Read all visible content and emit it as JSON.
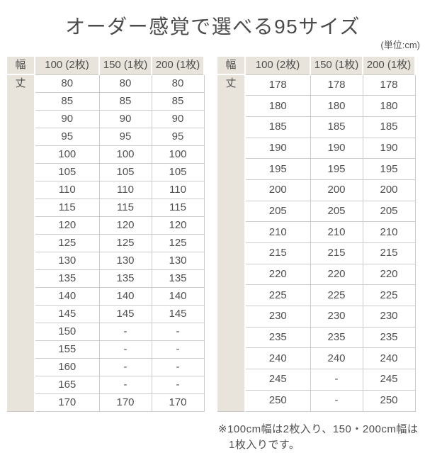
{
  "title": "オーダー感覚で選べる95サイズ",
  "unit_note": "(単位:cm)",
  "footnote": {
    "line1": "※100cm幅は2枚入り、150・200cm幅は",
    "line2": "1枚入りです。"
  },
  "colors": {
    "header_beige": "#e8e4db",
    "grid_line": "#cccccc",
    "text": "#4f4f4f",
    "background": "#ffffff"
  },
  "chart_data": [
    {
      "type": "table",
      "columns": [
        "幅",
        "100 (2枚)",
        "150 (1枚)",
        "200 (1枚)"
      ],
      "row_header": "丈",
      "rows": [
        [
          "80",
          "80",
          "80"
        ],
        [
          "85",
          "85",
          "85"
        ],
        [
          "90",
          "90",
          "90"
        ],
        [
          "95",
          "95",
          "95"
        ],
        [
          "100",
          "100",
          "100"
        ],
        [
          "105",
          "105",
          "105"
        ],
        [
          "110",
          "110",
          "110"
        ],
        [
          "115",
          "115",
          "115"
        ],
        [
          "120",
          "120",
          "120"
        ],
        [
          "125",
          "125",
          "125"
        ],
        [
          "130",
          "130",
          "130"
        ],
        [
          "135",
          "135",
          "135"
        ],
        [
          "140",
          "140",
          "140"
        ],
        [
          "145",
          "145",
          "145"
        ],
        [
          "150",
          "-",
          "-"
        ],
        [
          "155",
          "-",
          "-"
        ],
        [
          "160",
          "-",
          "-"
        ],
        [
          "165",
          "-",
          "-"
        ],
        [
          "170",
          "170",
          "170"
        ]
      ]
    },
    {
      "type": "table",
      "columns": [
        "幅",
        "100 (2枚)",
        "150 (1枚)",
        "200 (1枚)"
      ],
      "row_header": "丈",
      "rows": [
        [
          "178",
          "178",
          "178"
        ],
        [
          "180",
          "180",
          "180"
        ],
        [
          "185",
          "185",
          "185"
        ],
        [
          "190",
          "190",
          "190"
        ],
        [
          "195",
          "195",
          "195"
        ],
        [
          "200",
          "200",
          "200"
        ],
        [
          "205",
          "205",
          "205"
        ],
        [
          "210",
          "210",
          "210"
        ],
        [
          "215",
          "215",
          "215"
        ],
        [
          "220",
          "220",
          "220"
        ],
        [
          "225",
          "225",
          "225"
        ],
        [
          "230",
          "230",
          "230"
        ],
        [
          "235",
          "235",
          "235"
        ],
        [
          "240",
          "240",
          "240"
        ],
        [
          "245",
          "-",
          "245"
        ],
        [
          "250",
          "-",
          "250"
        ]
      ]
    }
  ]
}
